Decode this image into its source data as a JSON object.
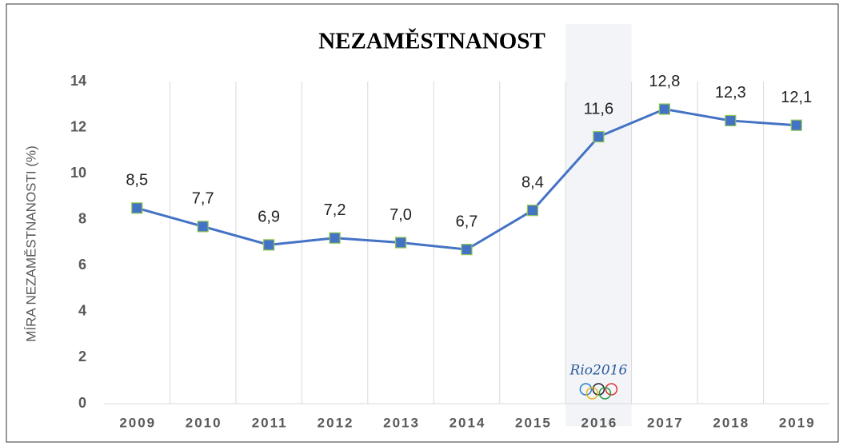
{
  "chart_data": {
    "type": "line",
    "title": "NEZAMĚSTNANOST",
    "y_label": "MÍRA NEZAMĚSTNANOSTI (%)",
    "categories": [
      "2009",
      "2010",
      "2011",
      "2012",
      "2013",
      "2014",
      "2015",
      "2016",
      "2017",
      "2018",
      "2019"
    ],
    "values": [
      8.5,
      7.7,
      6.9,
      7.2,
      7.0,
      6.7,
      8.4,
      11.6,
      12.8,
      12.3,
      12.1
    ],
    "value_labels": [
      "8,5",
      "7,7",
      "6,9",
      "7,2",
      "7,0",
      "6,7",
      "8,4",
      "11,6",
      "12,8",
      "12,3",
      "12,1"
    ],
    "color": "#4472c4",
    "marker_edge": "#8fc850",
    "ylim": [
      0,
      14
    ],
    "yticks": [
      0,
      2,
      4,
      6,
      8,
      10,
      12,
      14
    ],
    "grid": "vertical",
    "highlight": "2016",
    "annotation": "Rio2016"
  }
}
